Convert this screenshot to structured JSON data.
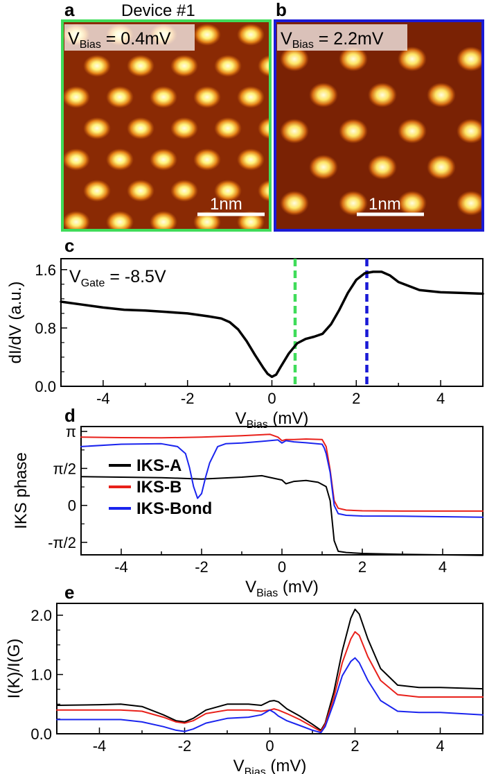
{
  "colors": {
    "green": "#3fdc5a",
    "blue": "#1a1ad6",
    "black": "#000000",
    "red": "#e8201a",
    "line_blue": "#1a24ee"
  },
  "panel_a": {
    "label": "a",
    "title": "Device #1",
    "bias_main": "V",
    "bias_sub": "Bias",
    "bias_value": " = 0.4mV",
    "scale_label": "1nm"
  },
  "panel_b": {
    "label": "b",
    "bias_main": "V",
    "bias_sub": "Bias",
    "bias_value": " = 2.2mV",
    "scale_label": "1nm"
  },
  "chart_data": [
    {
      "panel": "c",
      "type": "line",
      "ylabel": "dI/dV (a.u.)",
      "xlabel_main": "V",
      "xlabel_sub": "Bias",
      "xlabel_unit": " (mV)",
      "annotation_main": "V",
      "annotation_sub": "Gate",
      "annotation_value": " = -8.5V",
      "xlim": [
        -5,
        5
      ],
      "ylim": [
        0,
        1.75
      ],
      "xticks": [
        -4,
        -2,
        0,
        2,
        4
      ],
      "xtick_labels": [
        "-4",
        "-2",
        "0",
        "2",
        "4"
      ],
      "yticks": [
        0,
        0.8,
        1.6
      ],
      "ytick_labels": [
        "0.0",
        "0.8",
        "1.6"
      ],
      "vlines": [
        {
          "x": 0.55,
          "color": "green"
        },
        {
          "x": 2.25,
          "color": "blue"
        }
      ],
      "series": [
        {
          "name": "dI/dV",
          "color": "black",
          "x": [
            -5,
            -4.5,
            -4,
            -3.5,
            -3,
            -2.5,
            -2,
            -1.5,
            -1.2,
            -1,
            -0.8,
            -0.6,
            -0.4,
            -0.2,
            -0.1,
            0,
            0.1,
            0.2,
            0.4,
            0.6,
            0.8,
            1,
            1.2,
            1.4,
            1.6,
            1.8,
            2,
            2.2,
            2.4,
            2.6,
            2.8,
            3,
            3.5,
            4,
            4.5,
            5
          ],
          "y": [
            1.16,
            1.12,
            1.08,
            1.05,
            1.04,
            1.02,
            1.0,
            0.96,
            0.93,
            0.88,
            0.78,
            0.62,
            0.43,
            0.25,
            0.17,
            0.13,
            0.16,
            0.26,
            0.45,
            0.59,
            0.65,
            0.68,
            0.72,
            0.85,
            1.05,
            1.28,
            1.46,
            1.55,
            1.57,
            1.57,
            1.52,
            1.43,
            1.32,
            1.29,
            1.28,
            1.27
          ]
        }
      ]
    },
    {
      "panel": "d",
      "type": "line",
      "ylabel": "IKS phase",
      "xlabel_main": "V",
      "xlabel_sub": "Bias",
      "xlabel_unit": " (mV)",
      "xlim": [
        -5,
        5
      ],
      "ylim": [
        -2.1,
        3.35
      ],
      "xticks": [
        -4,
        -2,
        0,
        2,
        4
      ],
      "xtick_labels": [
        "-4",
        "-2",
        "0",
        "2",
        "4"
      ],
      "yticks": [
        -1.5708,
        0,
        1.5708,
        3.1416
      ],
      "ytick_labels": [
        "-π/2",
        "0",
        "π/2",
        "π"
      ],
      "legend": [
        "IKS-A",
        "IKS-B",
        "IKS-Bond"
      ],
      "series": [
        {
          "name": "IKS-A",
          "color": "black",
          "x": [
            -5,
            -4,
            -3,
            -2,
            -1,
            -0.5,
            0,
            0.1,
            0.3,
            0.6,
            0.9,
            1.1,
            1.2,
            1.3,
            1.4,
            1.6,
            2,
            3,
            4,
            5
          ],
          "y": [
            1.22,
            1.2,
            1.18,
            1.12,
            1.2,
            1.26,
            1.08,
            0.92,
            1.02,
            1.06,
            0.98,
            0.8,
            0.2,
            -1.5,
            -1.95,
            -2.0,
            -2.04,
            -2.08,
            -2.1,
            -2.12
          ]
        },
        {
          "name": "IKS-B",
          "color": "red",
          "x": [
            -5,
            -4,
            -3,
            -2,
            -1,
            -0.3,
            -0.1,
            0,
            0.1,
            0.3,
            0.6,
            1.0,
            1.1,
            1.2,
            1.3,
            1.4,
            1.6,
            2,
            3,
            4,
            5
          ],
          "y": [
            2.9,
            2.88,
            2.87,
            2.9,
            2.96,
            3.02,
            2.9,
            2.75,
            2.8,
            2.8,
            2.82,
            2.8,
            2.5,
            1.5,
            0.2,
            -0.12,
            -0.2,
            -0.23,
            -0.24,
            -0.24,
            -0.24
          ]
        },
        {
          "name": "IKS-Bond",
          "color": "line_blue",
          "x": [
            -5,
            -4,
            -3,
            -2.6,
            -2.4,
            -2.3,
            -2.2,
            -2.1,
            -2.0,
            -1.9,
            -1.8,
            -1.6,
            -1.4,
            -1.0,
            -0.5,
            -0.1,
            0,
            0.1,
            0.3,
            0.6,
            1.0,
            1.05,
            1.1,
            1.2,
            1.3,
            1.4,
            1.6,
            2,
            3,
            4,
            5
          ],
          "y": [
            2.5,
            2.6,
            2.62,
            2.5,
            2.2,
            1.6,
            0.8,
            0.3,
            0.5,
            1.2,
            1.8,
            2.5,
            2.62,
            2.65,
            2.72,
            2.78,
            2.65,
            2.75,
            2.7,
            2.66,
            2.6,
            2.45,
            2.2,
            1.4,
            0.0,
            -0.35,
            -0.42,
            -0.45,
            -0.46,
            -0.48,
            -0.5
          ]
        }
      ]
    },
    {
      "panel": "e",
      "type": "line",
      "ylabel": "I(K)/I(G)",
      "xlabel_main": "V",
      "xlabel_sub": "Bias",
      "xlabel_unit": " (mV)",
      "xlim": [
        -5,
        5
      ],
      "ylim": [
        0,
        2.2
      ],
      "xticks": [
        -4,
        -2,
        0,
        2,
        4
      ],
      "xtick_labels": [
        "-4",
        "-2",
        "0",
        "2",
        "4"
      ],
      "yticks": [
        0,
        1.0,
        2.0
      ],
      "ytick_labels": [
        "0.0",
        "1.0",
        "2.0"
      ],
      "series": [
        {
          "name": "IKS-A",
          "color": "black",
          "x": [
            -5,
            -4,
            -3.5,
            -3,
            -2.5,
            -2.2,
            -2.0,
            -1.8,
            -1.5,
            -1.0,
            -0.5,
            -0.2,
            0,
            0.1,
            0.2,
            0.4,
            0.7,
            1.0,
            1.2,
            1.3,
            1.5,
            1.7,
            1.9,
            2.0,
            2.1,
            2.3,
            2.6,
            3.0,
            3.5,
            4.0,
            5.0
          ],
          "y": [
            0.48,
            0.49,
            0.5,
            0.46,
            0.32,
            0.22,
            0.2,
            0.26,
            0.4,
            0.5,
            0.5,
            0.48,
            0.55,
            0.56,
            0.54,
            0.42,
            0.3,
            0.16,
            0.06,
            0.18,
            0.7,
            1.4,
            1.95,
            2.1,
            2.02,
            1.6,
            1.1,
            0.82,
            0.78,
            0.78,
            0.76
          ]
        },
        {
          "name": "IKS-B",
          "color": "red",
          "x": [
            -5,
            -4,
            -3.5,
            -3,
            -2.5,
            -2.2,
            -2.0,
            -1.8,
            -1.5,
            -1.0,
            -0.5,
            -0.2,
            0,
            0.1,
            0.2,
            0.4,
            0.7,
            1.0,
            1.2,
            1.3,
            1.5,
            1.7,
            1.9,
            2.0,
            2.1,
            2.3,
            2.6,
            3.0,
            3.5,
            4.0,
            5.0
          ],
          "y": [
            0.4,
            0.4,
            0.4,
            0.38,
            0.28,
            0.2,
            0.18,
            0.22,
            0.34,
            0.4,
            0.4,
            0.38,
            0.4,
            0.42,
            0.4,
            0.34,
            0.24,
            0.12,
            0.04,
            0.16,
            0.6,
            1.2,
            1.6,
            1.72,
            1.66,
            1.3,
            0.9,
            0.66,
            0.62,
            0.62,
            0.62
          ]
        },
        {
          "name": "IKS-Bond",
          "color": "line_blue",
          "x": [
            -5,
            -4,
            -3.5,
            -3,
            -2.5,
            -2.2,
            -2.0,
            -1.8,
            -1.5,
            -1.0,
            -0.5,
            -0.2,
            0,
            0.1,
            0.2,
            0.4,
            0.7,
            1.0,
            1.2,
            1.3,
            1.5,
            1.7,
            1.9,
            2.0,
            2.1,
            2.3,
            2.6,
            3.0,
            3.5,
            4.0,
            5.0
          ],
          "y": [
            0.24,
            0.24,
            0.24,
            0.2,
            0.12,
            0.06,
            0.04,
            0.08,
            0.18,
            0.26,
            0.28,
            0.32,
            0.4,
            0.36,
            0.3,
            0.22,
            0.14,
            0.06,
            0.02,
            0.12,
            0.52,
            0.98,
            1.22,
            1.28,
            1.2,
            0.9,
            0.56,
            0.38,
            0.36,
            0.36,
            0.32
          ]
        }
      ]
    }
  ]
}
